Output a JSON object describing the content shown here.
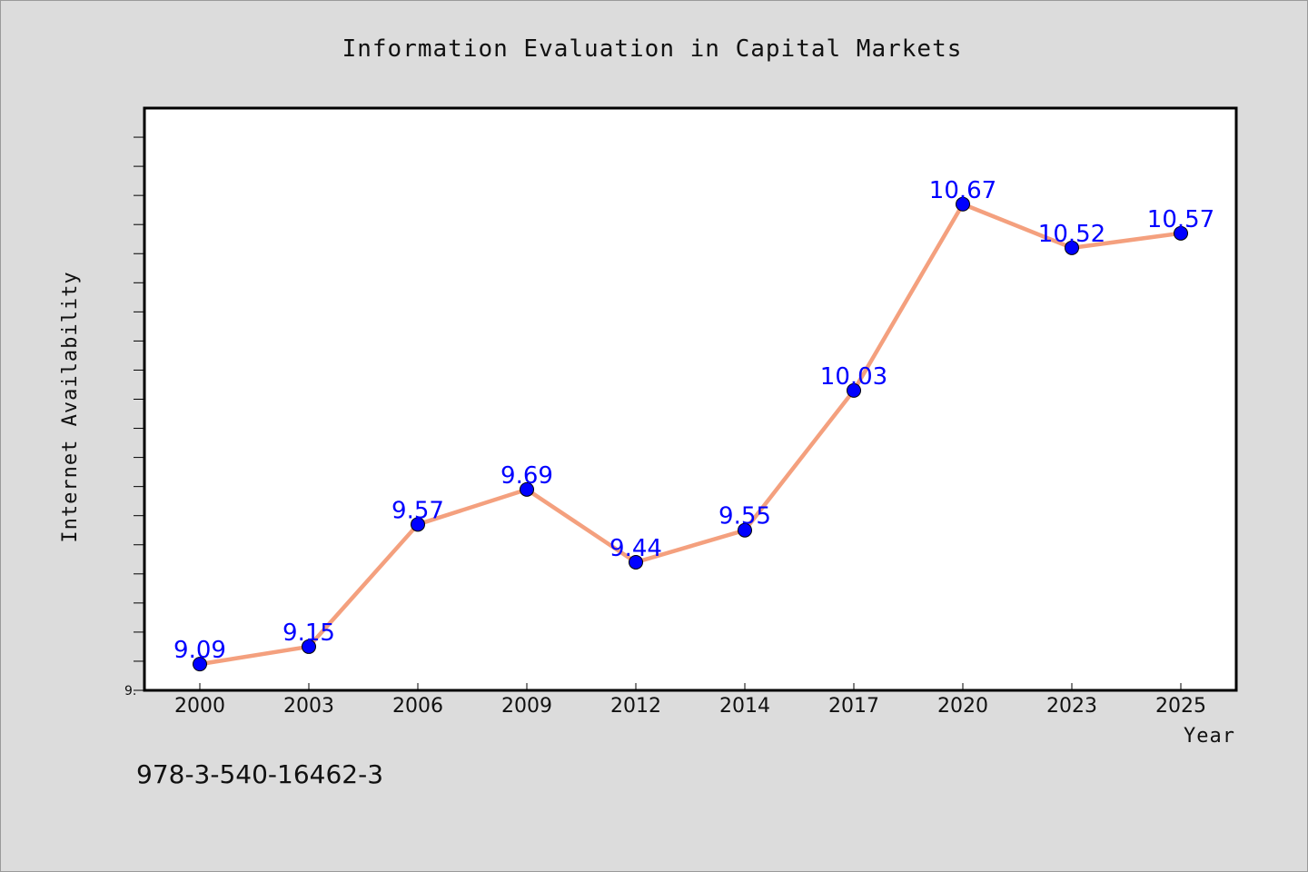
{
  "chart_data": {
    "type": "line",
    "title": "Information Evaluation in Capital Markets",
    "xlabel": "Year",
    "ylabel": "Internet Availability",
    "categories": [
      "2000",
      "2003",
      "2006",
      "2009",
      "2012",
      "2014",
      "2017",
      "2020",
      "2023",
      "2025"
    ],
    "series": [
      {
        "values": [
          9.09,
          9.15,
          9.57,
          9.69,
          9.44,
          9.55,
          10.03,
          10.67,
          10.52,
          10.57
        ]
      }
    ],
    "data_labels": [
      "9.09",
      "9.15",
      "9.57",
      "9.69",
      "9.44",
      "9.55",
      "10.03",
      "10.67",
      "10.52",
      "10.57"
    ],
    "ylim": [
      9.0,
      11.0
    ],
    "y_tick_label": "9.",
    "y_minor_step": 0.1,
    "grid": false,
    "legend": "none",
    "colors": {
      "line": "#f4a07e",
      "marker": "#0000ff",
      "data_label": "#0000ff",
      "plot_background": "#ffffff",
      "figure_background": "#dcdcdc"
    }
  },
  "footer": {
    "code": "978-3-540-16462-3"
  }
}
